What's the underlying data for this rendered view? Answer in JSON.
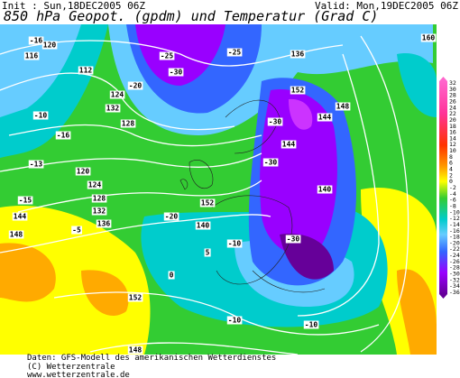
{
  "header": {
    "init": "Init : Sun,18DEC2005 06Z",
    "valid": "Valid: Mon,19DEC2005 06Z",
    "title": "850 hPa Geopot. (gpdm) und Temperatur (Grad C)"
  },
  "colorbar": {
    "labels": [
      32,
      30,
      28,
      26,
      24,
      22,
      20,
      18,
      16,
      14,
      12,
      10,
      8,
      6,
      4,
      2,
      0,
      -2,
      -4,
      -6,
      -8,
      -10,
      -12,
      -14,
      -16,
      -18,
      -20,
      -22,
      -24,
      -26,
      -28,
      -30,
      -32,
      -34,
      -36
    ]
  },
  "map": {
    "labels": [
      "-16",
      "120",
      "116",
      "112",
      "-20",
      "-25",
      "124",
      "-30",
      "132",
      "128",
      "-16",
      "-13",
      "-15",
      "-10",
      "120",
      "124",
      "128",
      "132",
      "136",
      "140",
      "144",
      "-30",
      "-20",
      "152",
      "148",
      "144",
      "148",
      "152",
      "-10",
      "-30",
      "-5",
      "0",
      "144",
      "148",
      "-10",
      "5",
      "152",
      "140",
      "136",
      "-25",
      "-30",
      "-10",
      "160"
    ]
  },
  "footer": [
    "Daten: GFS-Modell des amerikanischen Wetterdienstes",
    "(C) Wetterzentrale",
    "www.wetterzentrale.de"
  ]
}
